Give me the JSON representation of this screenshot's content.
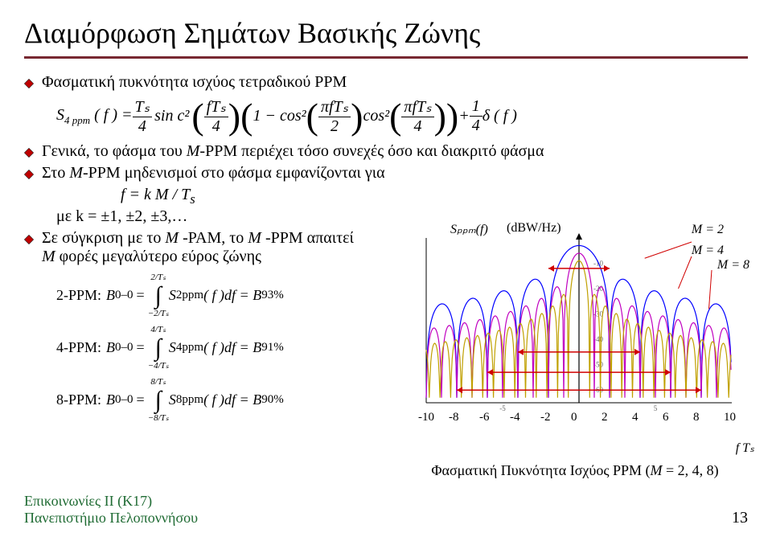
{
  "title": "Διαμόρφωση Σημάτων Βασικής Ζώνης",
  "bullets": {
    "b1": "Φασματική πυκνότητα ισχύος τετραδικού PPM",
    "b2_prefix": "Γενικά, το φάσμα του ",
    "b2_m": "M",
    "b2_suffix": "-PPM περιέχει τόσο συνεχές όσο και διακριτό φάσμα",
    "b3_prefix": "Στο ",
    "b3_m": "M",
    "b3_suffix": "-PPM μηδενισμοί στο φάσμα εμφανίζονται για",
    "b3_formula": "f = k M / T",
    "b3_formula_sub": "s",
    "b3_cond": "με k = ±1, ±2, ±3,…",
    "b4_prefix": "Σε σύγκριση με το ",
    "b4_m1": "M",
    "b4_mid": " -PAM, το ",
    "b4_m2": "M",
    "b4_suffix": " -PPM απαιτεί",
    "b4_line2_m": "M",
    "b4_line2": " φορές μεγαλύτερο εύρος ζώνης"
  },
  "equations": {
    "ppm2_label": "2-PPM: ",
    "ppm2_lhs": "B",
    "ppm2_lhs_sub": "0–0",
    "ppm2_limits_top": "2/Tₛ",
    "ppm2_limits_bot": "−2/Tₛ",
    "ppm2_integrand1": "S",
    "ppm2_integrand1_sub": "2ppm",
    "ppm2_integrand2": "( f )df = B",
    "ppm2_rhs_sub": "93%",
    "ppm4_label": "4-PPM: ",
    "ppm4_lhs": "B",
    "ppm4_lhs_sub": "0–0",
    "ppm4_limits_top": "4/Tₛ",
    "ppm4_limits_bot": "−4/Tₛ",
    "ppm4_integrand1": "S",
    "ppm4_integrand1_sub": "4ppm",
    "ppm4_integrand2": "( f )df = B",
    "ppm4_rhs_sub": "91%",
    "ppm8_label": "8-PPM: ",
    "ppm8_lhs": "B",
    "ppm8_lhs_sub": "0–0",
    "ppm8_limits_top": "8/Tₛ",
    "ppm8_limits_bot": "−8/Tₛ",
    "ppm8_integrand1": "S",
    "ppm8_integrand1_sub": "8ppm",
    "ppm8_integrand2": "( f )df = B",
    "ppm8_rhs_sub": "90%"
  },
  "main_formula": {
    "S": "S",
    "S_sub": "4 ppm",
    "f_open": "( f ) =",
    "Ts_over_4_num": "Tₛ",
    "Ts_over_4_den": "4",
    "sinc": "sin c²",
    "arg1_num": "fTₛ",
    "arg1_den": "4",
    "one_minus_cos": "1 − cos²",
    "arg2_num": "πfTₛ",
    "arg2_den": "2",
    "cos2": "cos²",
    "arg3_num": "πfTₛ",
    "arg3_den": "4",
    "plus_delta": "+",
    "one_over_4_num": "1",
    "one_over_4_den": "4",
    "delta": "δ ( f )"
  },
  "chart": {
    "y_label": "Sₚₚₘ(f)",
    "y_unit": "(dBW/Hz)",
    "legend_m2": "M = 2",
    "legend_m4": "M = 4",
    "legend_m8": "M = 8",
    "x_ticks": [
      "-10",
      "-8",
      "-6",
      "-4",
      "-2",
      "0",
      "2",
      "4",
      "6",
      "8",
      "10"
    ],
    "y_ticks_minor": [
      "-10",
      "-20",
      "-30",
      "-40",
      "-50",
      "-60"
    ],
    "x_ticks_minor": [
      "-5",
      "5"
    ],
    "x_label": "f Tₛ",
    "caption_prefix": "Φασματική Πυκνότητα Ισχύος PPM (",
    "caption_m": "M",
    "caption_suffix": " = 2, 4, 8)",
    "colors": {
      "axis": "#000",
      "m2": "#0000ff",
      "m4": "#c000c0",
      "m8": "#c0a000",
      "red": "#d00000",
      "arrows": "#d00000"
    }
  },
  "footer": {
    "line1": "Επικοινωνίες II (K17)",
    "line2": "Πανεπιστήμιο Πελοποννήσου",
    "page": "13"
  }
}
